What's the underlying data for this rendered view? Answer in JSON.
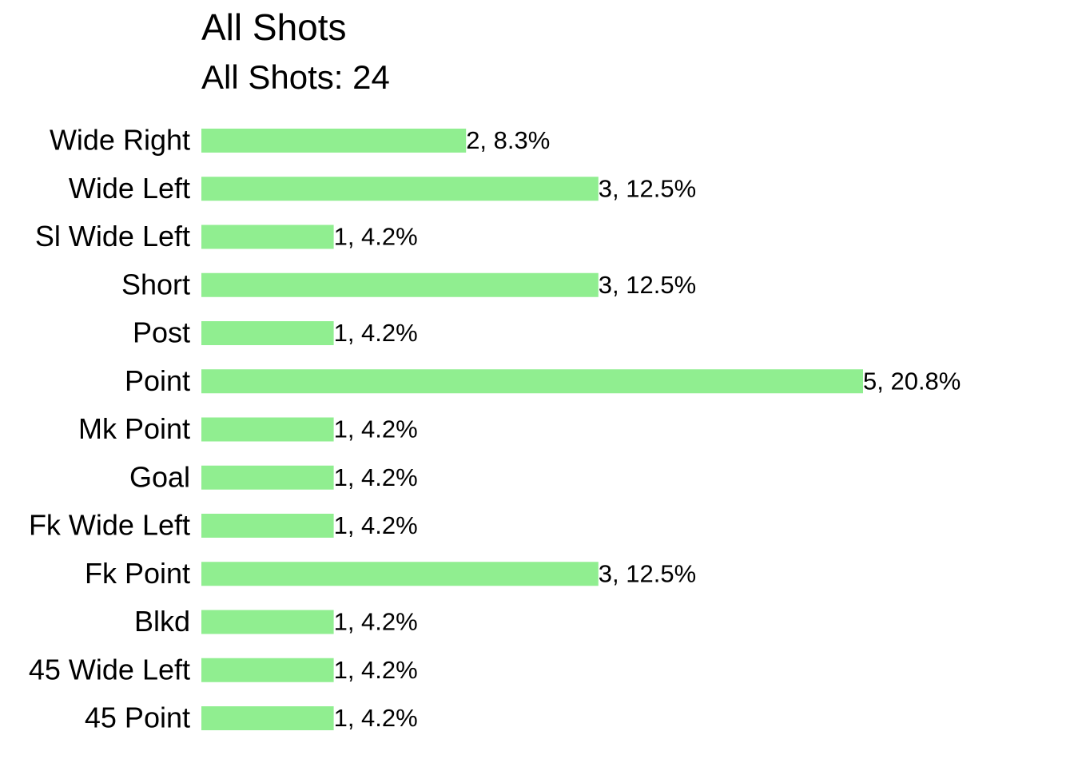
{
  "chart_data": {
    "type": "bar",
    "orientation": "horizontal",
    "title": "All Shots",
    "subtitle": "All Shots: 24",
    "categories": [
      "Wide Right",
      "Wide Left",
      "Sl Wide Left",
      "Short",
      "Post",
      "Point",
      "Mk Point",
      "Goal",
      "Fk Wide Left",
      "Fk Point",
      "Blkd",
      "45 Wide Left",
      "45 Point"
    ],
    "values": [
      2,
      3,
      1,
      3,
      1,
      5,
      1,
      1,
      1,
      3,
      1,
      1,
      1
    ],
    "value_labels": [
      "2, 8.3%",
      "3, 12.5%",
      "1, 4.2%",
      "3, 12.5%",
      "1, 4.2%",
      "5, 20.8%",
      "1, 4.2%",
      "1, 4.2%",
      "1, 4.2%",
      "3, 12.5%",
      "1, 4.2%",
      "1, 4.2%",
      "1, 4.2%"
    ],
    "color": "#90ee90"
  }
}
